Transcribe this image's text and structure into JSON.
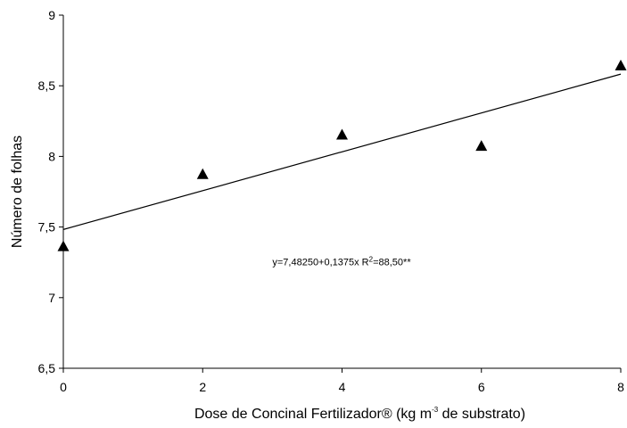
{
  "chart_data": {
    "type": "scatter",
    "title": "",
    "xlabel": {
      "pre": "Dose de Concinal Fertilizador® (kg m",
      "sup": "-3",
      "post": " de substrato)"
    },
    "ylabel": "Número de folhas",
    "xlim": [
      0,
      8
    ],
    "ylim": [
      6.5,
      9
    ],
    "x_ticks": [
      0,
      2,
      4,
      6,
      8
    ],
    "x_tick_labels": [
      "0",
      "2",
      "4",
      "6",
      "8"
    ],
    "y_ticks": [
      6.5,
      7,
      7.5,
      8,
      8.5,
      9
    ],
    "y_tick_labels": [
      "6,5",
      "7",
      "7,5",
      "8",
      "8,5",
      "9"
    ],
    "grid": false,
    "marker": "triangle",
    "points": [
      {
        "x": 0,
        "y": 7.36
      },
      {
        "x": 2,
        "y": 7.87
      },
      {
        "x": 4,
        "y": 8.15
      },
      {
        "x": 6,
        "y": 8.07
      },
      {
        "x": 8,
        "y": 8.64
      }
    ],
    "fit_line": {
      "intercept": 7.4825,
      "slope": 0.1375
    },
    "annotation": {
      "main": "y=7,48250+0,1375x   R",
      "sup": "2",
      "post": "=88,50**",
      "at": {
        "x": 3.0,
        "y": 7.23
      }
    },
    "colors": {
      "marks": "#000000",
      "axis": "#000000"
    }
  }
}
